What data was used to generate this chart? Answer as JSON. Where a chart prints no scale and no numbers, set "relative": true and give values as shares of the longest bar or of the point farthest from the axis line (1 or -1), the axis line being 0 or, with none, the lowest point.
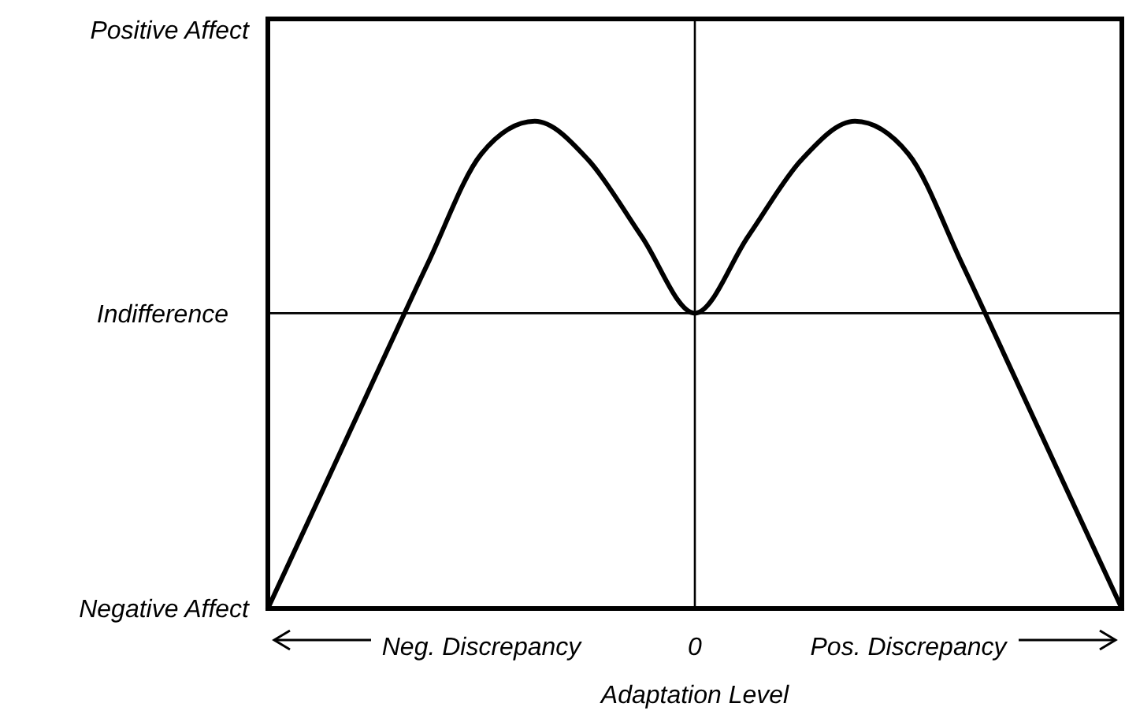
{
  "chart_data": {
    "type": "line",
    "xlabel": "Adaptation Level",
    "relative": true,
    "categories": [
      null,
      null,
      null,
      null,
      "Neg. Discrepancy",
      null,
      null,
      null,
      "0",
      null,
      null,
      null,
      "Pos. Discrepancy",
      null,
      null,
      null,
      null
    ],
    "marker": "none",
    "line_style": "solid",
    "annotations": [
      "Positive Affect",
      "Negative Affect"
    ],
    "ref_lines": [
      {
        "axis": "x",
        "value": "0",
        "color": "#000000"
      },
      {
        "axis": "y",
        "value": 0.606,
        "label": "Indifference",
        "color": "#000000"
      }
    ],
    "series": [
      {
        "color": "#000000",
        "values": [
          0,
          0.236,
          0.473,
          0.709,
          0.933,
          1,
          0.921,
          0.764,
          0.606,
          0.764,
          0.921,
          1,
          0.933,
          0.709,
          0.473,
          0.236,
          0
        ]
      }
    ]
  }
}
